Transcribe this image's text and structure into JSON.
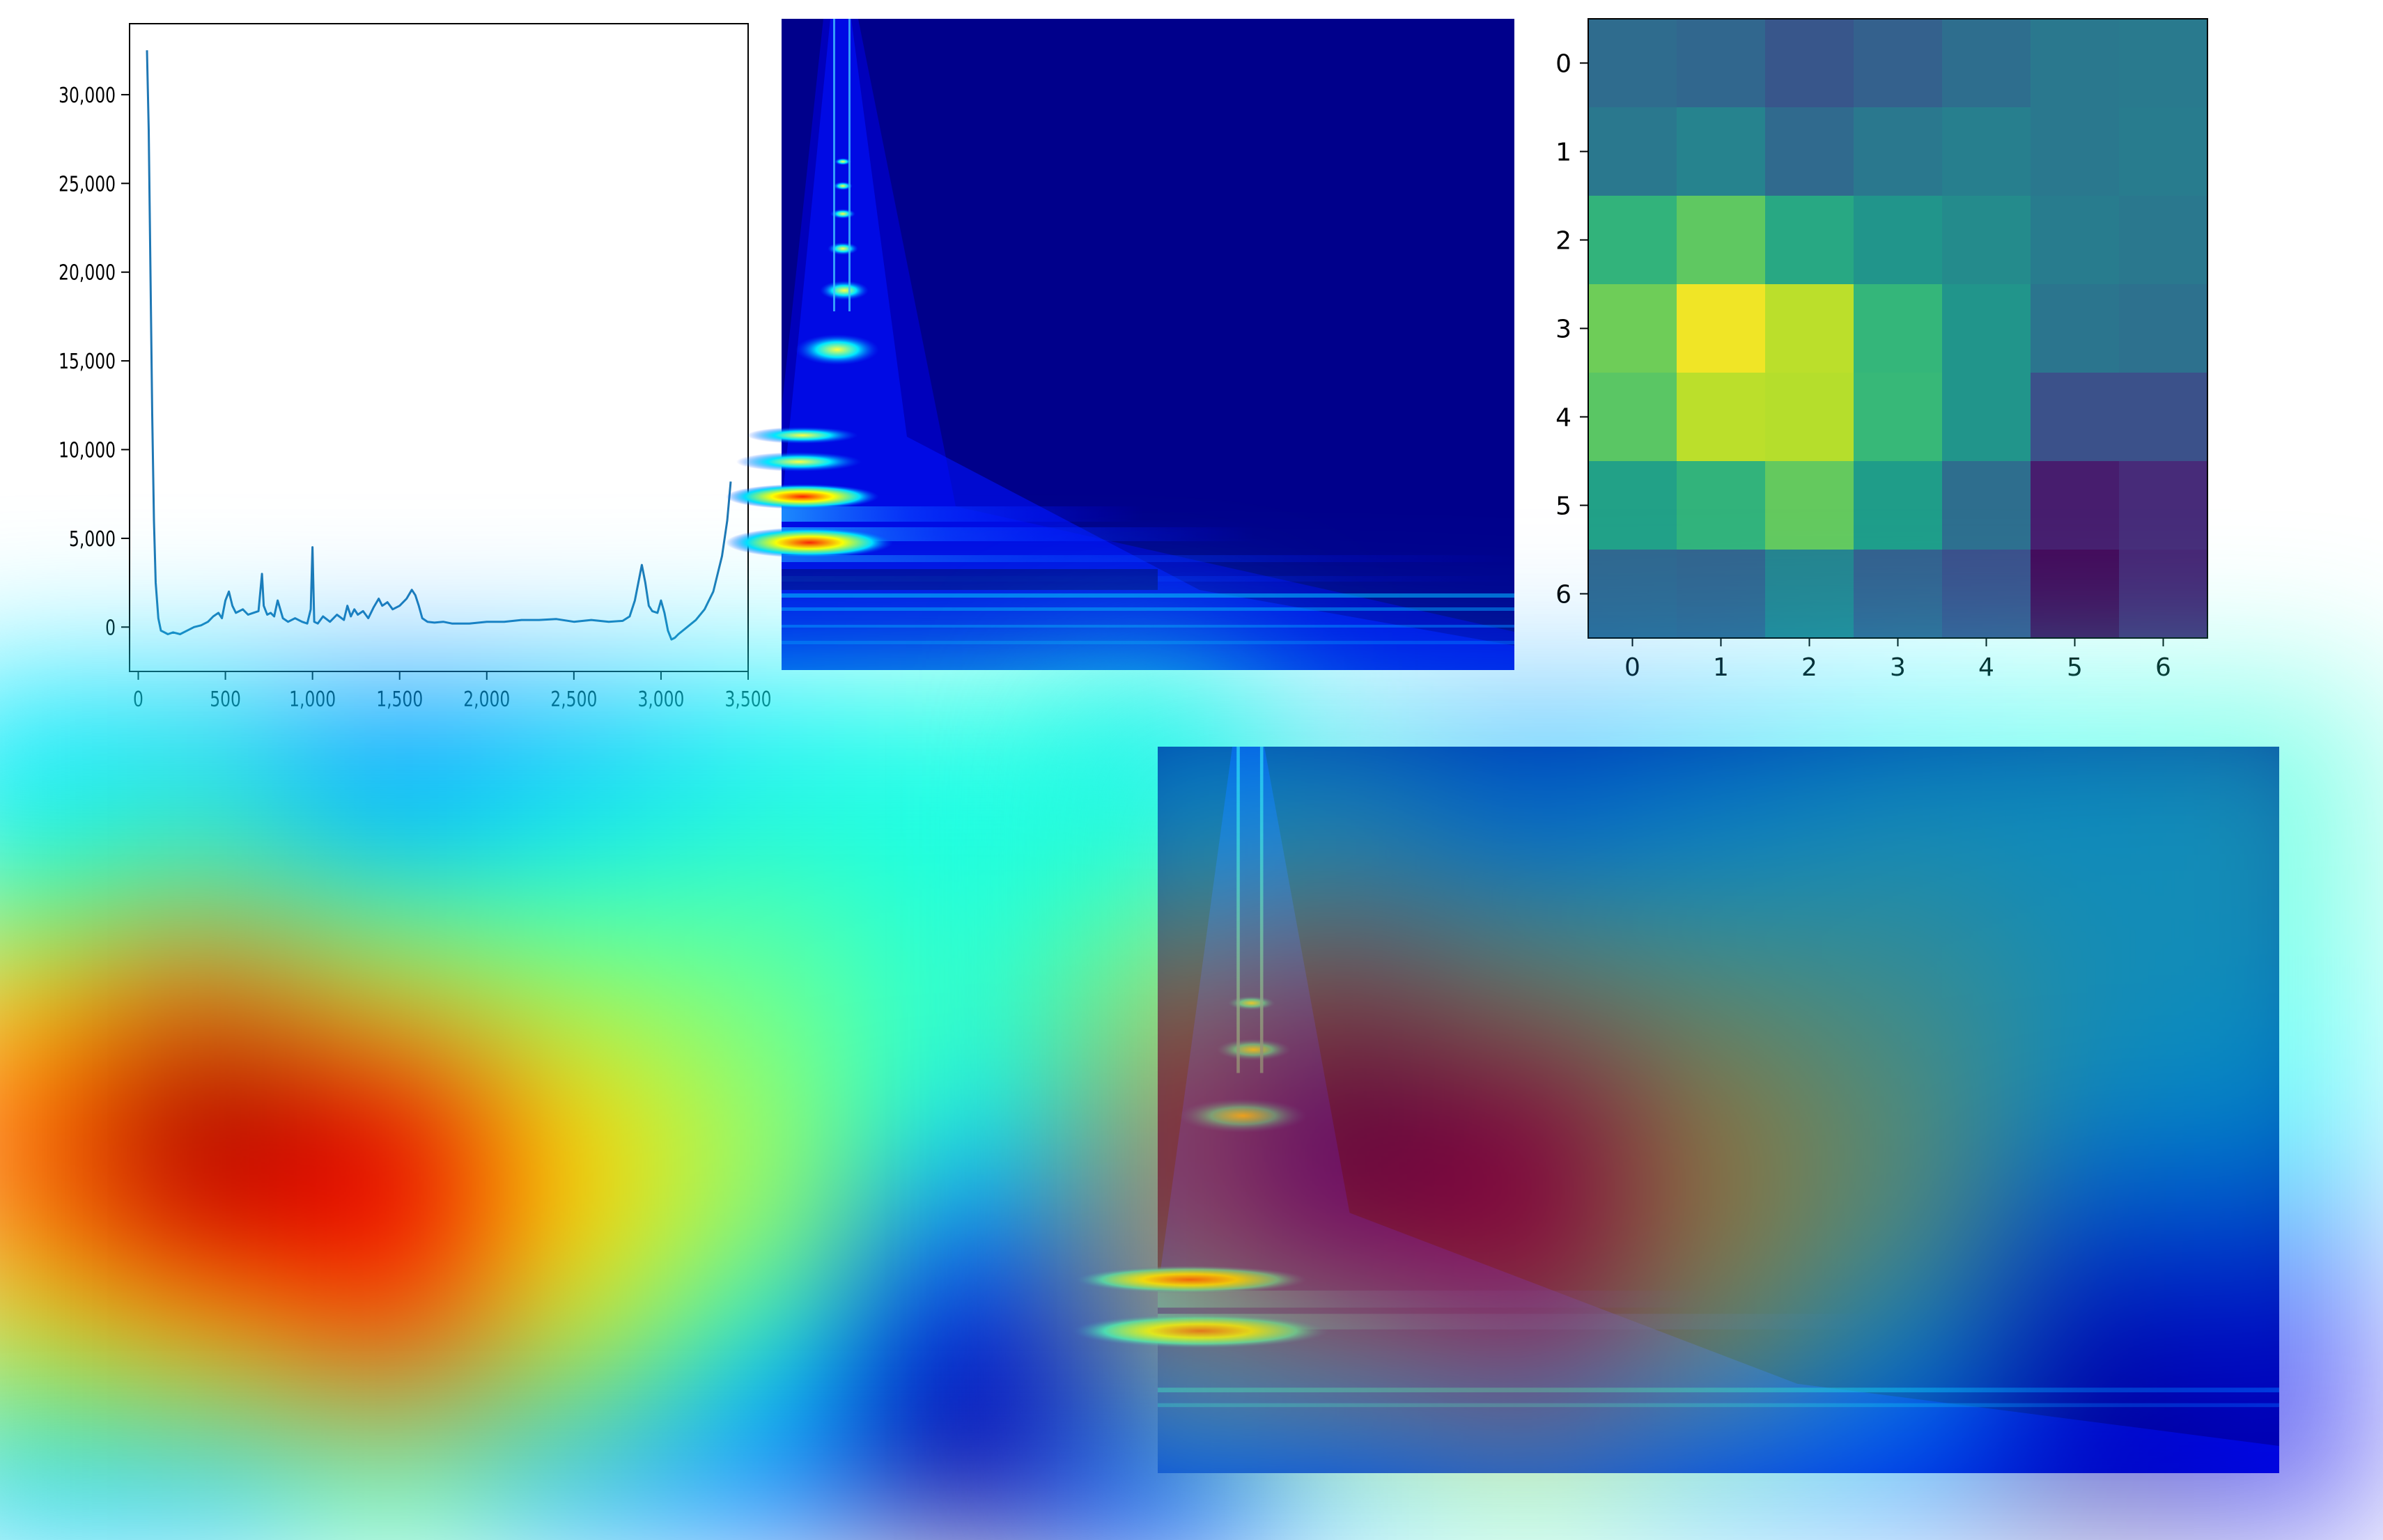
{
  "panels": {
    "line_plot": {
      "label": ""
    },
    "spectrogram": {
      "label": ""
    },
    "grid_map": {
      "label": ""
    },
    "cam_heatmap": {
      "label": ""
    },
    "overlay": {
      "label": ""
    }
  },
  "chart_data": [
    {
      "type": "line",
      "title": "",
      "xlabel": "",
      "ylabel": "",
      "xlim": [
        -50,
        3500
      ],
      "ylim": [
        -2500,
        34000
      ],
      "x_ticks": [
        0,
        500,
        1000,
        1500,
        2000,
        2500,
        3000,
        3500
      ],
      "x_tick_labels": [
        "0",
        "500",
        "1,000",
        "1,500",
        "2,000",
        "2,500",
        "3,000",
        "3,500"
      ],
      "y_ticks": [
        0,
        5000,
        10000,
        15000,
        20000,
        25000,
        30000
      ],
      "y_tick_labels": [
        "0",
        "5,000",
        "10,000",
        "15,000",
        "20,000",
        "25,000",
        "30,000"
      ],
      "line_color": "#1f77b4",
      "grid": false,
      "series": [
        {
          "x": [
            50,
            60,
            70,
            80,
            90,
            100,
            115,
            130,
            150,
            170,
            200,
            240,
            280,
            320,
            360,
            400,
            430,
            460,
            480,
            500,
            520,
            540,
            560,
            580,
            600,
            630,
            660,
            690,
            710,
            720,
            740,
            760,
            780,
            800,
            830,
            860,
            900,
            940,
            970,
            990,
            1000,
            1010,
            1030,
            1060,
            1100,
            1140,
            1180,
            1200,
            1220,
            1240,
            1260,
            1290,
            1320,
            1350,
            1380,
            1400,
            1430,
            1460,
            1500,
            1540,
            1570,
            1590,
            1610,
            1630,
            1660,
            1700,
            1750,
            1800,
            1900,
            2000,
            2100,
            2200,
            2300,
            2400,
            2500,
            2600,
            2700,
            2780,
            2820,
            2850,
            2870,
            2890,
            2910,
            2930,
            2950,
            2980,
            3000,
            3020,
            3040,
            3060,
            3080,
            3100,
            3150,
            3200,
            3250,
            3300,
            3350,
            3380,
            3400
          ],
          "y": [
            32500,
            28000,
            20000,
            12000,
            6000,
            2500,
            500,
            -200,
            -300,
            -400,
            -300,
            -400,
            -200,
            0,
            100,
            300,
            600,
            800,
            500,
            1500,
            2000,
            1200,
            800,
            900,
            1000,
            700,
            800,
            900,
            3000,
            1200,
            700,
            800,
            600,
            1500,
            500,
            300,
            500,
            300,
            200,
            1000,
            4500,
            300,
            200,
            600,
            300,
            700,
            400,
            1200,
            600,
            1000,
            700,
            900,
            500,
            1100,
            1600,
            1200,
            1400,
            1000,
            1200,
            1600,
            2100,
            1800,
            1200,
            500,
            300,
            250,
            300,
            200,
            200,
            300,
            300,
            400,
            400,
            450,
            300,
            400,
            300,
            350,
            600,
            1500,
            2500,
            3500,
            2500,
            1200,
            900,
            800,
            1500,
            800,
            -200,
            -700,
            -600,
            -400,
            0,
            400,
            1000,
            2000,
            4000,
            6000,
            8200
          ]
        }
      ]
    },
    {
      "type": "heatmap",
      "title": "",
      "xlabel": "",
      "ylabel": "",
      "x_ticks": [
        0,
        1,
        2,
        3,
        4,
        5,
        6
      ],
      "y_ticks": [
        0,
        1,
        2,
        3,
        4,
        5,
        6
      ],
      "colormap": "viridis",
      "vmin": 0,
      "vmax": 1,
      "values": [
        [
          0.35,
          0.33,
          0.27,
          0.31,
          0.36,
          0.4,
          0.41
        ],
        [
          0.4,
          0.45,
          0.34,
          0.4,
          0.43,
          0.4,
          0.42
        ],
        [
          0.65,
          0.75,
          0.6,
          0.52,
          0.48,
          0.42,
          0.4
        ],
        [
          0.78,
          0.98,
          0.9,
          0.66,
          0.52,
          0.39,
          0.37
        ],
        [
          0.74,
          0.9,
          0.89,
          0.67,
          0.52,
          0.25,
          0.25
        ],
        [
          0.57,
          0.65,
          0.76,
          0.55,
          0.36,
          0.08,
          0.12
        ],
        [
          0.33,
          0.32,
          0.45,
          0.3,
          0.24,
          0.02,
          0.1
        ]
      ]
    }
  ]
}
